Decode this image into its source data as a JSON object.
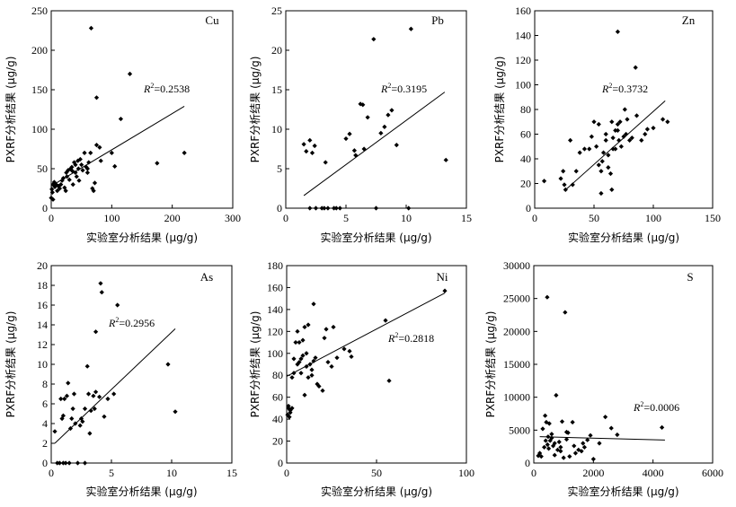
{
  "chart_data": [
    {
      "type": "scatter",
      "element": "Cu",
      "xlabel": "实验室分析结果 (μg/g)",
      "ylabel": "PXRF分析结果 (μg/g)",
      "xlim": [
        0,
        300
      ],
      "ylim": [
        0,
        250
      ],
      "xticks": [
        0,
        100,
        200,
        300
      ],
      "yticks": [
        0,
        50,
        100,
        150,
        200,
        250
      ],
      "r2_prefix": "R",
      "r2_sup": "2",
      "r2_value": "=0.2538",
      "fit": {
        "x": [
          0,
          220
        ],
        "y": [
          28,
          129
        ]
      },
      "points": [
        [
          0,
          13
        ],
        [
          1,
          24
        ],
        [
          2,
          20
        ],
        [
          3,
          11
        ],
        [
          3,
          30
        ],
        [
          5,
          33
        ],
        [
          6,
          27
        ],
        [
          8,
          30
        ],
        [
          10,
          22
        ],
        [
          12,
          28
        ],
        [
          14,
          25
        ],
        [
          16,
          30
        ],
        [
          18,
          35
        ],
        [
          20,
          38
        ],
        [
          22,
          26
        ],
        [
          24,
          22
        ],
        [
          25,
          45
        ],
        [
          26,
          40
        ],
        [
          28,
          48
        ],
        [
          30,
          36
        ],
        [
          32,
          50
        ],
        [
          34,
          52
        ],
        [
          35,
          47
        ],
        [
          36,
          30
        ],
        [
          38,
          58
        ],
        [
          40,
          55
        ],
        [
          40,
          45
        ],
        [
          42,
          40
        ],
        [
          44,
          60
        ],
        [
          45,
          50
        ],
        [
          46,
          35
        ],
        [
          48,
          62
        ],
        [
          50,
          55
        ],
        [
          52,
          48
        ],
        [
          55,
          70
        ],
        [
          58,
          52
        ],
        [
          60,
          50
        ],
        [
          60,
          45
        ],
        [
          62,
          58
        ],
        [
          65,
          70
        ],
        [
          66,
          228
        ],
        [
          68,
          25
        ],
        [
          70,
          22
        ],
        [
          72,
          32
        ],
        [
          75,
          140
        ],
        [
          75,
          80
        ],
        [
          80,
          77
        ],
        [
          82,
          60
        ],
        [
          100,
          70
        ],
        [
          105,
          53
        ],
        [
          115,
          113
        ],
        [
          130,
          170
        ],
        [
          175,
          57
        ],
        [
          220,
          70
        ]
      ]
    },
    {
      "type": "scatter",
      "element": "Pb",
      "xlabel": "实验室分析结果 (μg/g)",
      "ylabel": "PXRF分析结果 (μg/g)",
      "xlim": [
        0,
        15
      ],
      "ylim": [
        0,
        25
      ],
      "xticks": [
        0,
        5,
        10,
        15
      ],
      "yticks": [
        0,
        5,
        10,
        15,
        20,
        25
      ],
      "r2_prefix": "R",
      "r2_sup": "2",
      "r2_value": "=0.3195",
      "fit": {
        "x": [
          1.5,
          13.2
        ],
        "y": [
          1.6,
          14.7
        ]
      },
      "points": [
        [
          1.5,
          8.1
        ],
        [
          1.7,
          7.2
        ],
        [
          2,
          8.6
        ],
        [
          2.2,
          7.0
        ],
        [
          2.4,
          7.9
        ],
        [
          2,
          0
        ],
        [
          2.5,
          0
        ],
        [
          3,
          0
        ],
        [
          3.2,
          0
        ],
        [
          3.5,
          0
        ],
        [
          4,
          0
        ],
        [
          4.2,
          0
        ],
        [
          4.5,
          0
        ],
        [
          3.3,
          5.8
        ],
        [
          5,
          8.8
        ],
        [
          5.3,
          9.4
        ],
        [
          5.8,
          6.7
        ],
        [
          5.7,
          7.3
        ],
        [
          6.2,
          13.2
        ],
        [
          6.4,
          13.1
        ],
        [
          6.5,
          7.5
        ],
        [
          6.8,
          11.5
        ],
        [
          7.3,
          21.4
        ],
        [
          7.5,
          0
        ],
        [
          7.9,
          9.5
        ],
        [
          8.2,
          10.3
        ],
        [
          8.5,
          11.8
        ],
        [
          8.8,
          12.4
        ],
        [
          9.2,
          8.0
        ],
        [
          10.4,
          22.7
        ],
        [
          10.2,
          0
        ],
        [
          13.3,
          6.1
        ]
      ]
    },
    {
      "type": "scatter",
      "element": "Zn",
      "xlabel": "实验室分析结果 (μg/g)",
      "ylabel": "PXRF分析结果 (μg/g)",
      "xlim": [
        0,
        150
      ],
      "ylim": [
        0,
        160
      ],
      "xticks": [
        0,
        50,
        100,
        150
      ],
      "yticks": [
        0,
        20,
        40,
        60,
        80,
        100,
        120,
        140,
        160
      ],
      "r2_prefix": "R",
      "r2_sup": "2",
      "r2_value": "=0.3732",
      "fit": {
        "x": [
          25,
          110
        ],
        "y": [
          14,
          87
        ]
      },
      "points": [
        [
          8,
          22
        ],
        [
          22,
          24
        ],
        [
          24,
          30
        ],
        [
          25,
          19
        ],
        [
          26,
          15
        ],
        [
          30,
          55
        ],
        [
          32,
          19
        ],
        [
          35,
          30
        ],
        [
          38,
          45
        ],
        [
          42,
          48
        ],
        [
          46,
          48
        ],
        [
          48,
          58
        ],
        [
          50,
          70
        ],
        [
          52,
          50
        ],
        [
          54,
          68
        ],
        [
          54,
          35
        ],
        [
          56,
          30
        ],
        [
          56,
          12
        ],
        [
          57,
          38
        ],
        [
          58,
          45
        ],
        [
          60,
          55
        ],
        [
          60,
          60
        ],
        [
          62,
          33
        ],
        [
          62,
          43
        ],
        [
          64,
          28
        ],
        [
          65,
          70
        ],
        [
          66,
          48
        ],
        [
          66,
          57
        ],
        [
          68,
          48
        ],
        [
          68,
          63
        ],
        [
          70,
          63
        ],
        [
          70,
          68
        ],
        [
          72,
          70
        ],
        [
          70,
          143
        ],
        [
          71,
          55
        ],
        [
          73,
          50
        ],
        [
          75,
          58
        ],
        [
          76,
          80
        ],
        [
          77,
          60
        ],
        [
          78,
          72
        ],
        [
          80,
          55
        ],
        [
          82,
          57
        ],
        [
          85,
          114
        ],
        [
          86,
          75
        ],
        [
          90,
          55
        ],
        [
          93,
          60
        ],
        [
          95,
          64
        ],
        [
          100,
          65
        ],
        [
          108,
          72
        ],
        [
          112,
          70
        ],
        [
          65,
          15
        ]
      ]
    },
    {
      "type": "scatter",
      "element": "As",
      "xlabel": "实验室分析结果 (μg/g)",
      "ylabel": "PXRF分析结果 (μg/g)",
      "xlim": [
        0,
        15
      ],
      "ylim": [
        0,
        20
      ],
      "xticks": [
        0,
        5,
        10,
        15
      ],
      "yticks": [
        0,
        2,
        4,
        6,
        8,
        10,
        12,
        14,
        16,
        18,
        20
      ],
      "r2_prefix": "R",
      "r2_sup": "2",
      "r2_value": "=0.2956",
      "fit": {
        "x": [
          0.3,
          10.3
        ],
        "y": [
          2.0,
          13.6
        ]
      },
      "points": [
        [
          0.3,
          3.2
        ],
        [
          0.5,
          0
        ],
        [
          0.7,
          0
        ],
        [
          0.8,
          6.5
        ],
        [
          0.9,
          4.5
        ],
        [
          1.0,
          4.8
        ],
        [
          1.1,
          6.5
        ],
        [
          1.2,
          0
        ],
        [
          1.3,
          6.8
        ],
        [
          1.4,
          8.1
        ],
        [
          1.5,
          0
        ],
        [
          1.6,
          3.5
        ],
        [
          1.7,
          4.5
        ],
        [
          1.8,
          5.5
        ],
        [
          1.9,
          7.0
        ],
        [
          2.0,
          4.0
        ],
        [
          2.2,
          0
        ],
        [
          2.4,
          3.8
        ],
        [
          2.5,
          4.5
        ],
        [
          2.6,
          4.2
        ],
        [
          2.8,
          5.5
        ],
        [
          3.0,
          9.8
        ],
        [
          3.1,
          7.0
        ],
        [
          3.2,
          3.0
        ],
        [
          3.3,
          5.3
        ],
        [
          3.5,
          6.8
        ],
        [
          3.6,
          5.5
        ],
        [
          3.7,
          7.2
        ],
        [
          3.7,
          13.3
        ],
        [
          4.0,
          6.7
        ],
        [
          4.1,
          18.2
        ],
        [
          4.2,
          17.3
        ],
        [
          4.4,
          4.7
        ],
        [
          4.7,
          6.5
        ],
        [
          5.2,
          7.0
        ],
        [
          5.5,
          16.0
        ],
        [
          9.7,
          10.0
        ],
        [
          10.3,
          5.2
        ],
        [
          1.0,
          0
        ],
        [
          2.8,
          0
        ]
      ]
    },
    {
      "type": "scatter",
      "element": "Ni",
      "xlabel": "实验室分析结果 (μg/g)",
      "ylabel": "PXRF分析结果 (μg/g)",
      "xlim": [
        0,
        100
      ],
      "ylim": [
        0,
        180
      ],
      "xticks": [
        0,
        50,
        100
      ],
      "yticks": [
        0,
        20,
        40,
        60,
        80,
        100,
        120,
        140,
        160,
        180
      ],
      "r2_prefix": "R",
      "r2_sup": "2",
      "r2_value": "=0.2818",
      "fit": {
        "x": [
          0,
          88
        ],
        "y": [
          79,
          155
        ]
      },
      "points": [
        [
          0.5,
          44
        ],
        [
          1,
          50
        ],
        [
          1,
          52
        ],
        [
          1.5,
          42
        ],
        [
          2,
          48
        ],
        [
          2,
          46
        ],
        [
          3,
          50
        ],
        [
          3,
          78
        ],
        [
          4,
          82
        ],
        [
          5,
          110
        ],
        [
          6,
          120
        ],
        [
          6,
          90
        ],
        [
          7,
          92
        ],
        [
          8,
          95
        ],
        [
          8,
          82
        ],
        [
          9,
          112
        ],
        [
          10,
          124
        ],
        [
          10,
          62
        ],
        [
          11,
          88
        ],
        [
          12,
          126
        ],
        [
          12,
          78
        ],
        [
          13,
          90
        ],
        [
          14,
          80
        ],
        [
          14,
          85
        ],
        [
          15,
          93
        ],
        [
          15,
          145
        ],
        [
          16,
          96
        ],
        [
          17,
          72
        ],
        [
          18,
          70
        ],
        [
          20,
          66
        ],
        [
          21,
          114
        ],
        [
          22,
          122
        ],
        [
          23,
          92
        ],
        [
          25,
          88
        ],
        [
          26,
          124
        ],
        [
          28,
          96
        ],
        [
          32,
          104
        ],
        [
          35,
          102
        ],
        [
          36,
          97
        ],
        [
          55,
          130
        ],
        [
          57,
          75
        ],
        [
          88,
          157
        ],
        [
          4,
          95
        ],
        [
          7,
          110
        ],
        [
          9,
          98
        ],
        [
          11,
          100
        ]
      ]
    },
    {
      "type": "scatter",
      "element": "S",
      "xlabel": "实验室分析结果 (μg/g)",
      "ylabel": "PXRF分析结果 (μg/g)",
      "xlim": [
        0,
        6000
      ],
      "ylim": [
        0,
        30000
      ],
      "xticks": [
        0,
        2000,
        4000,
        6000
      ],
      "yticks": [
        0,
        5000,
        10000,
        15000,
        20000,
        25000,
        30000
      ],
      "r2_prefix": "R",
      "r2_sup": "2",
      "r2_value": "=0.0006",
      "fit": {
        "x": [
          200,
          4400
        ],
        "y": [
          4000,
          3500
        ]
      },
      "points": [
        [
          150,
          1100
        ],
        [
          200,
          1500
        ],
        [
          250,
          1000
        ],
        [
          300,
          5200
        ],
        [
          350,
          2400
        ],
        [
          380,
          7200
        ],
        [
          400,
          3400
        ],
        [
          420,
          6200
        ],
        [
          450,
          25200
        ],
        [
          460,
          2800
        ],
        [
          480,
          4000
        ],
        [
          500,
          2200
        ],
        [
          520,
          6000
        ],
        [
          550,
          3400
        ],
        [
          600,
          3800
        ],
        [
          650,
          2600
        ],
        [
          700,
          1200
        ],
        [
          750,
          10300
        ],
        [
          800,
          2000
        ],
        [
          850,
          3200
        ],
        [
          900,
          1800
        ],
        [
          950,
          6300
        ],
        [
          1000,
          800
        ],
        [
          1050,
          22900
        ],
        [
          1100,
          3600
        ],
        [
          1150,
          4600
        ],
        [
          1200,
          1000
        ],
        [
          1300,
          6200
        ],
        [
          1350,
          2600
        ],
        [
          1400,
          1500
        ],
        [
          1500,
          2000
        ],
        [
          1600,
          1800
        ],
        [
          1650,
          3000
        ],
        [
          1700,
          2400
        ],
        [
          1800,
          3500
        ],
        [
          1900,
          4200
        ],
        [
          2000,
          600
        ],
        [
          2200,
          3000
        ],
        [
          2400,
          7000
        ],
        [
          2600,
          5300
        ],
        [
          2800,
          4300
        ],
        [
          4300,
          5400
        ],
        [
          600,
          4400
        ],
        [
          700,
          3000
        ],
        [
          900,
          2400
        ],
        [
          1100,
          4700
        ]
      ]
    }
  ]
}
